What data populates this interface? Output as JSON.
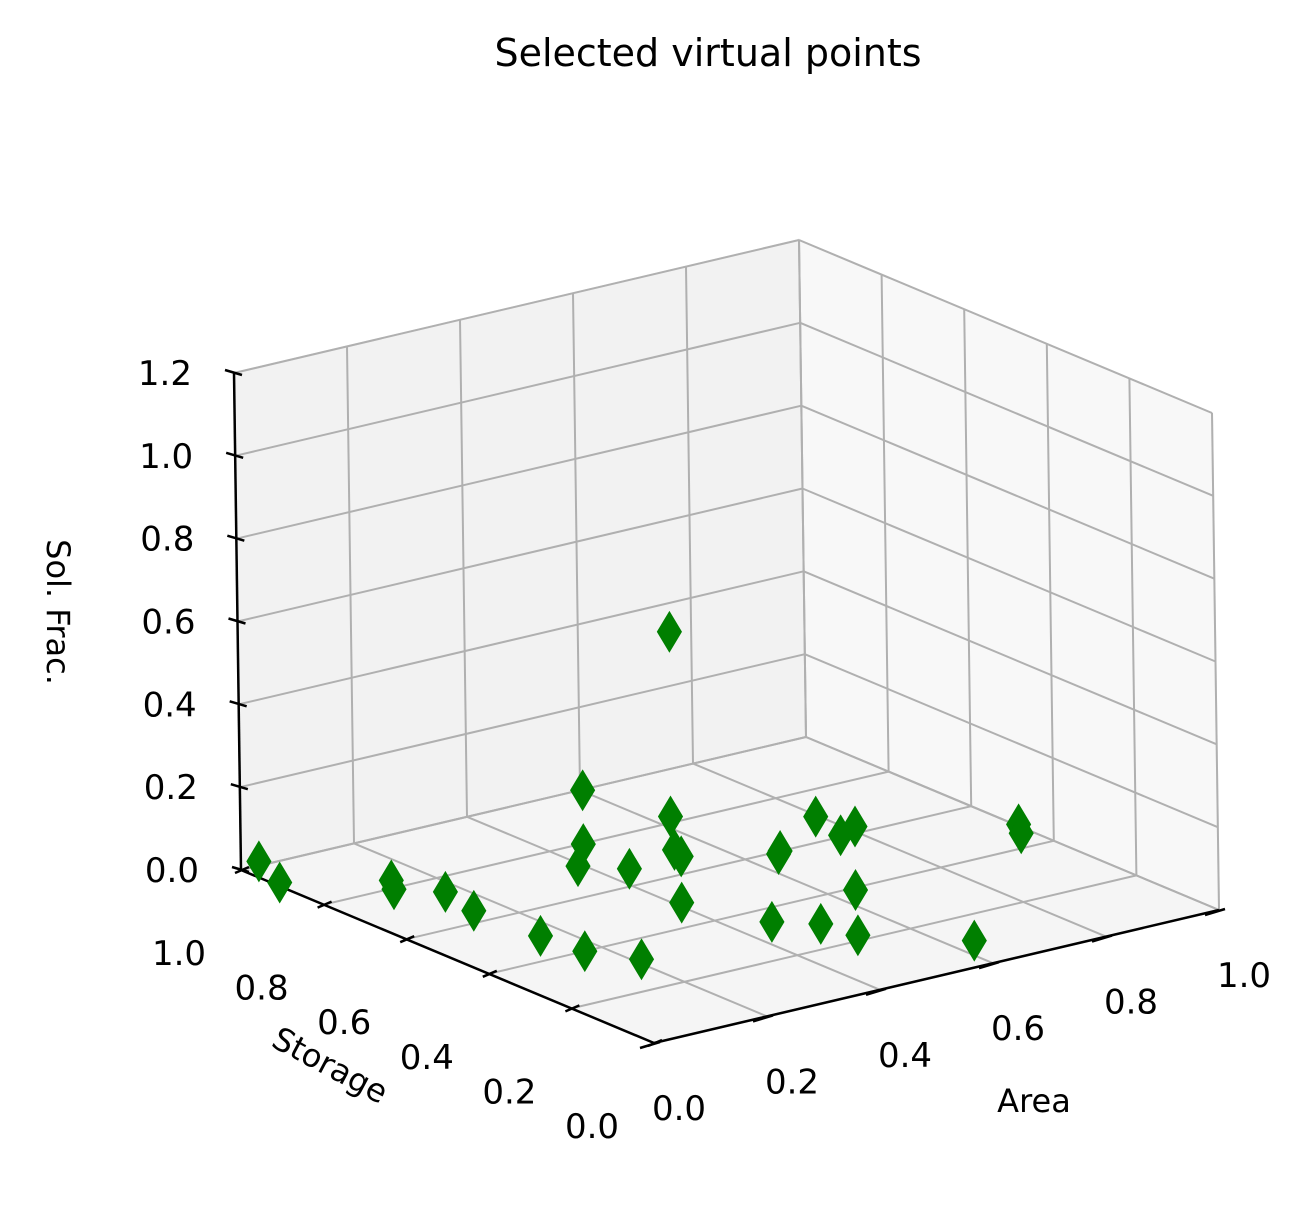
{
  "chart_data": {
    "type": "scatter",
    "projection": "3d",
    "title": "Selected virtual points",
    "xlabel": "Area",
    "ylabel": "Storage",
    "zlabel": "Sol. Frac.",
    "xlim": [
      0,
      1
    ],
    "ylim": [
      0,
      1
    ],
    "zlim": [
      0,
      1.2
    ],
    "xticks": [
      "0.0",
      "0.2",
      "0.4",
      "0.6",
      "0.8",
      "1.0"
    ],
    "yticks": [
      "0.0",
      "0.2",
      "0.4",
      "0.6",
      "0.8",
      "1.0"
    ],
    "zticks": [
      "0.0",
      "0.2",
      "0.4",
      "0.6",
      "0.8",
      "1.0",
      "1.2"
    ],
    "grid": true,
    "marker": "diamond",
    "color": "#007f00",
    "points": [
      {
        "x": 0.01,
        "y": 0.97,
        "z": 0.03
      },
      {
        "x": 0.11,
        "y": 0.78,
        "z": 0.01
      },
      {
        "x": 0.12,
        "y": 0.8,
        "z": 0.02
      },
      {
        "x": 0.15,
        "y": 0.71,
        "z": 0.02
      },
      {
        "x": 0.01,
        "y": 0.92,
        "z": 0.0
      },
      {
        "x": 0.12,
        "y": 0.6,
        "z": 0.03
      },
      {
        "x": 0.15,
        "y": 0.48,
        "z": 0.01
      },
      {
        "x": 0.17,
        "y": 0.4,
        "z": 0.0
      },
      {
        "x": 0.19,
        "y": 0.29,
        "z": 0.02
      },
      {
        "x": 0.38,
        "y": 0.69,
        "z": 0.2
      },
      {
        "x": 0.38,
        "y": 0.69,
        "z": 0.07
      },
      {
        "x": 0.37,
        "y": 0.69,
        "z": 0.02
      },
      {
        "x": 0.41,
        "y": 0.62,
        "z": 0.03
      },
      {
        "x": 0.4,
        "y": 0.48,
        "z": 0.01
      },
      {
        "x": 0.48,
        "y": 0.59,
        "z": 0.05
      },
      {
        "x": 0.49,
        "y": 0.62,
        "z": 0.05
      },
      {
        "x": 0.52,
        "y": 0.67,
        "z": 0.1
      },
      {
        "x": 0.74,
        "y": 0.97,
        "z": 0.35
      },
      {
        "x": 0.45,
        "y": 0.33,
        "z": 0.01
      },
      {
        "x": 0.5,
        "y": 0.28,
        "z": 0.01
      },
      {
        "x": 0.5,
        "y": 0.19,
        "z": 0.02
      },
      {
        "x": 0.64,
        "y": 0.57,
        "z": 0.02
      },
      {
        "x": 0.63,
        "y": 0.56,
        "z": 0.02
      },
      {
        "x": 0.62,
        "y": 0.36,
        "z": 0.02
      },
      {
        "x": 0.74,
        "y": 0.62,
        "z": 0.05
      },
      {
        "x": 0.74,
        "y": 0.56,
        "z": 0.03
      },
      {
        "x": 0.78,
        "y": 0.58,
        "z": 0.03
      },
      {
        "x": 0.64,
        "y": 0.1,
        "z": 0.0
      },
      {
        "x": 0.96,
        "y": 0.43,
        "z": 0.04
      },
      {
        "x": 0.95,
        "y": 0.41,
        "z": 0.03
      }
    ]
  }
}
